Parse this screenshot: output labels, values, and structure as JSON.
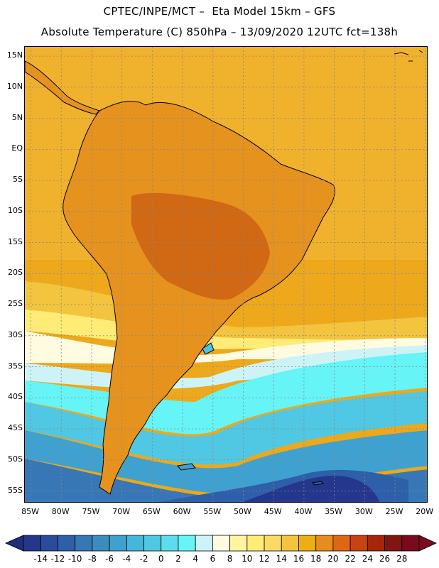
{
  "title": {
    "line1": "CPTEC/INPE/MCT –  Eta Model 15km – GFS",
    "line2": "Absolute Temperature (C) 850hPa – 13/09/2020 12UTC fct=138h"
  },
  "map": {
    "y_axis_labels": [
      "15N",
      "10N",
      "5N",
      "EQ",
      "5S",
      "10S",
      "15S",
      "20S",
      "25S",
      "30S",
      "35S",
      "40S",
      "45S",
      "50S",
      "55S"
    ],
    "y_axis_values": [
      15,
      10,
      5,
      0,
      -5,
      -10,
      -15,
      -20,
      -25,
      -30,
      -35,
      -40,
      -45,
      -50,
      -55
    ],
    "x_axis_labels": [
      "85W",
      "80W",
      "75W",
      "70W",
      "65W",
      "60W",
      "55W",
      "50W",
      "45W",
      "40W",
      "35W",
      "30W",
      "25W",
      "20W"
    ],
    "x_axis_values": [
      -85,
      -80,
      -75,
      -70,
      -65,
      -60,
      -55,
      -50,
      -45,
      -40,
      -35,
      -30,
      -25,
      -20
    ],
    "lat_range": [
      -57,
      16.5
    ],
    "lon_range": [
      -86,
      -19.5
    ],
    "ocean_background_color": "#eda81c",
    "land_background_color": "#e6921e",
    "coastline_color": "#000000",
    "gridline_color": "#888888"
  },
  "colorbar": {
    "labels": [
      "-14",
      "-12",
      "-10",
      "-8",
      "-6",
      "-4",
      "-2",
      "0",
      "2",
      "4",
      "6",
      "8",
      "10",
      "12",
      "14",
      "16",
      "18",
      "20",
      "22",
      "24",
      "26",
      "28"
    ],
    "colors": [
      "#24378c",
      "#2b4b9c",
      "#2e5fa9",
      "#3777b6",
      "#3d8cc0",
      "#3fa1cf",
      "#45b7dc",
      "#50c8e3",
      "#5ddcef",
      "#66f4f6",
      "#cdf3f7",
      "#fffbe0",
      "#fff4a0",
      "#feec76",
      "#fbd965",
      "#f3c43e",
      "#eeae13",
      "#e68d1e",
      "#df6712",
      "#c54410",
      "#a52608",
      "#80160f",
      "#7a0a1e"
    ],
    "arrow_left_color": "#1f2e78",
    "arrow_right_color": "#7a0a1e"
  }
}
